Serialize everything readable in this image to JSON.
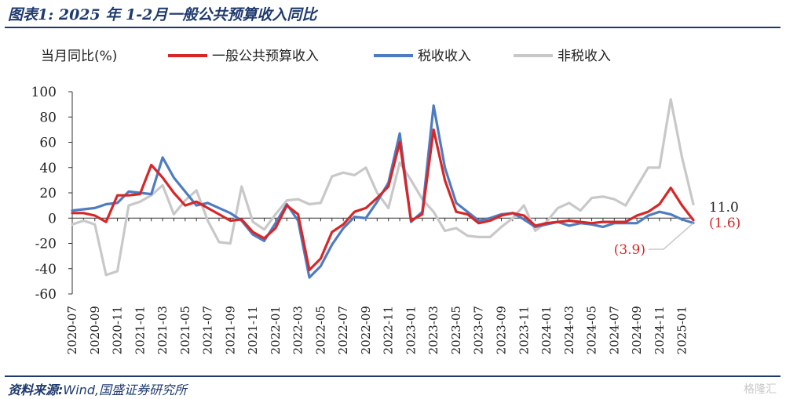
{
  "header": {
    "label": "图表1:",
    "year": "2025",
    "text1": "年",
    "range": "1-2",
    "text2": "月一般公共预算收入同比"
  },
  "source": {
    "label": "资料来源:",
    "text": "Wind,国盛证券研究所"
  },
  "watermark": "格隆汇",
  "chart_data": {
    "type": "line",
    "ylabel": "当月同比(%)",
    "ylim": [
      -60,
      100
    ],
    "yticks": [
      100,
      80,
      60,
      40,
      20,
      0,
      -20,
      -40,
      -60
    ],
    "x": [
      "2020-07",
      "2020-08",
      "2020-09",
      "2020-10",
      "2020-11",
      "2020-12",
      "2021-01",
      "2021-02",
      "2021-03",
      "2021-04",
      "2021-05",
      "2021-06",
      "2021-07",
      "2021-08",
      "2021-09",
      "2021-10",
      "2021-11",
      "2021-12",
      "2022-01",
      "2022-02",
      "2022-03",
      "2022-04",
      "2022-05",
      "2022-06",
      "2022-07",
      "2022-08",
      "2022-09",
      "2022-10",
      "2022-11",
      "2022-12",
      "2023-01",
      "2023-02",
      "2023-03",
      "2023-04",
      "2023-05",
      "2023-06",
      "2023-07",
      "2023-08",
      "2023-09",
      "2023-10",
      "2023-11",
      "2023-12",
      "2024-01",
      "2024-02",
      "2024-03",
      "2024-04",
      "2024-05",
      "2024-06",
      "2024-07",
      "2024-08",
      "2024-09",
      "2024-10",
      "2024-11",
      "2024-12",
      "2025-01",
      "2025-02"
    ],
    "xticklabels": [
      "2020-07",
      "2020-09",
      "2020-11",
      "2021-01",
      "2021-03",
      "2021-05",
      "2021-07",
      "2021-09",
      "2021-11",
      "2022-01",
      "2022-03",
      "2022-05",
      "2022-07",
      "2022-09",
      "2022-11",
      "2023-01",
      "2023-03",
      "2023-05",
      "2023-07",
      "2023-09",
      "2023-11",
      "2024-01",
      "2024-03",
      "2024-05",
      "2024-07",
      "2024-09",
      "2024-11",
      "2025-01"
    ],
    "series": [
      {
        "name": "一般公共预算收入",
        "color": "#d62728",
        "values": [
          4,
          4,
          2,
          -3,
          18,
          18,
          19,
          42,
          32,
          20,
          10,
          13,
          8,
          3,
          -2,
          -1,
          -11,
          -16,
          -8,
          10,
          3,
          -41,
          -32,
          -11,
          -5,
          5,
          8,
          16,
          25,
          60,
          -2,
          3,
          70,
          30,
          5,
          3,
          -4,
          -2,
          2,
          4,
          2,
          -6,
          -4,
          -3,
          -2,
          -3,
          -4,
          -3,
          -3,
          -3,
          2,
          5,
          11,
          24,
          10,
          -1.6
        ]
      },
      {
        "name": "税收收入",
        "color": "#4f7cc0",
        "values": [
          6,
          7,
          8,
          11,
          12,
          21,
          20,
          19,
          48,
          32,
          21,
          10,
          12,
          8,
          4,
          -2,
          -13,
          -18,
          -4,
          11,
          -2,
          -47,
          -38,
          -21,
          -8,
          1,
          0,
          13,
          28,
          67,
          -3,
          5,
          89,
          40,
          12,
          5,
          -2,
          0,
          3,
          4,
          -1,
          -7,
          -5,
          -3,
          -6,
          -4,
          -5,
          -7,
          -4,
          -4,
          -4,
          2,
          5,
          3,
          -1,
          -3.9
        ]
      },
      {
        "name": "非税收入",
        "color": "#c8c8c8",
        "values": [
          -5,
          -2,
          -5,
          -45,
          -42,
          10,
          13,
          18,
          26,
          3,
          14,
          22,
          -2,
          -19,
          -20,
          25,
          -3,
          -9,
          3,
          14,
          15,
          11,
          12,
          33,
          36,
          34,
          40,
          20,
          8,
          44,
          30,
          15,
          5,
          -10,
          -8,
          -14,
          -15,
          -15,
          -7,
          0,
          10,
          -10,
          -3,
          8,
          12,
          6,
          16,
          17,
          15,
          10,
          25,
          40,
          40,
          94,
          48,
          11
        ]
      }
    ],
    "annotations": [
      {
        "text": "11.0",
        "series": "非税收入",
        "color": "#222222"
      },
      {
        "text": "(1.6)",
        "series": "一般公共预算收入",
        "color": "#d62728"
      },
      {
        "text": "(3.9)",
        "series": "税收收入",
        "color": "#d62728"
      }
    ]
  }
}
